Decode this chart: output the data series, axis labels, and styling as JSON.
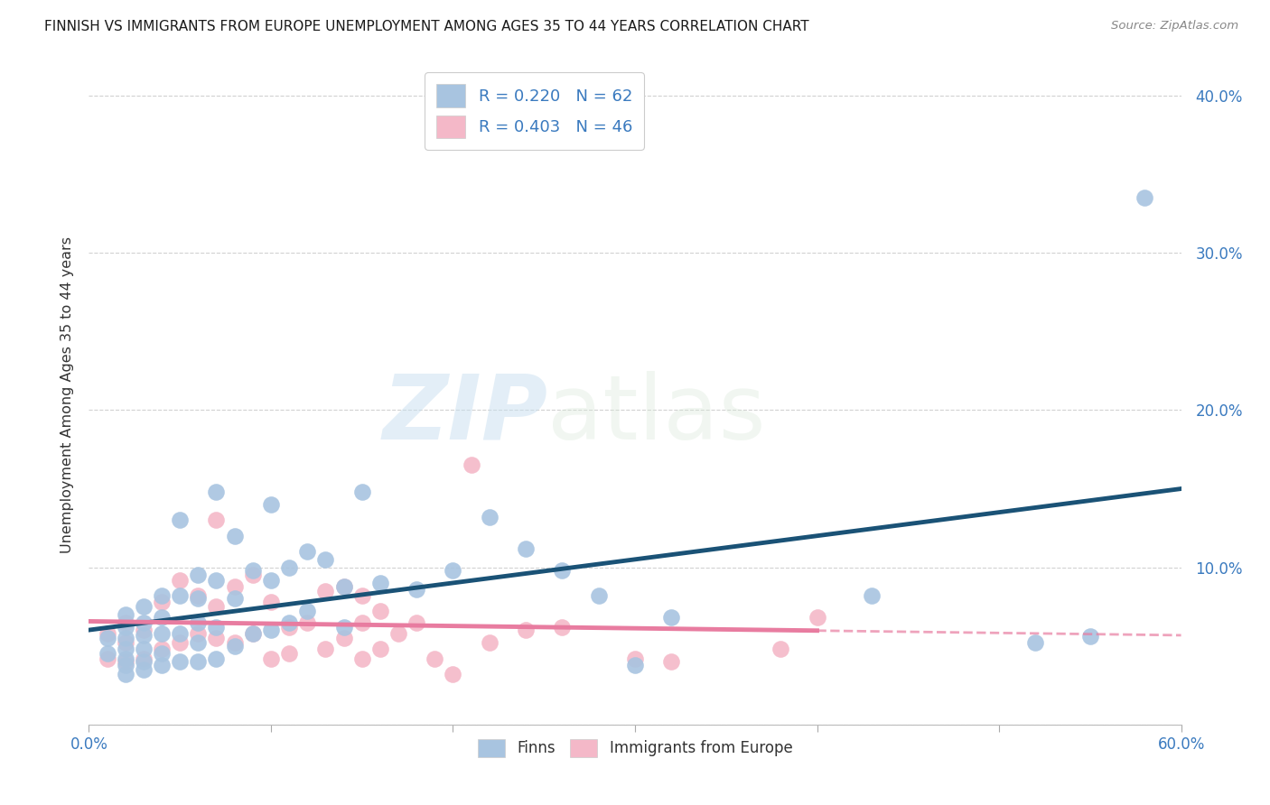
{
  "title": "FINNISH VS IMMIGRANTS FROM EUROPE UNEMPLOYMENT AMONG AGES 35 TO 44 YEARS CORRELATION CHART",
  "source": "Source: ZipAtlas.com",
  "ylabel_label": "Unemployment Among Ages 35 to 44 years",
  "xlim": [
    0.0,
    0.6
  ],
  "ylim": [
    0.0,
    0.42
  ],
  "xticks": [
    0.0,
    0.1,
    0.2,
    0.3,
    0.4,
    0.5,
    0.6
  ],
  "yticks": [
    0.0,
    0.1,
    0.2,
    0.3,
    0.4
  ],
  "ytick_labels": [
    "",
    "10.0%",
    "20.0%",
    "30.0%",
    "40.0%"
  ],
  "xtick_labels": [
    "0.0%",
    "",
    "",
    "",
    "",
    "",
    "60.0%"
  ],
  "legend1_R": "0.220",
  "legend1_N": "62",
  "legend2_R": "0.403",
  "legend2_N": "46",
  "finns_color": "#a8c4e0",
  "immigrants_color": "#f4b8c8",
  "finns_line_color": "#1a5276",
  "immigrants_line_color": "#e87ca0",
  "grid_color": "#cccccc",
  "watermark_zip": "ZIP",
  "watermark_atlas": "atlas",
  "finns_x": [
    0.01,
    0.01,
    0.02,
    0.02,
    0.02,
    0.02,
    0.02,
    0.02,
    0.02,
    0.03,
    0.03,
    0.03,
    0.03,
    0.03,
    0.03,
    0.04,
    0.04,
    0.04,
    0.04,
    0.04,
    0.05,
    0.05,
    0.05,
    0.05,
    0.06,
    0.06,
    0.06,
    0.06,
    0.06,
    0.07,
    0.07,
    0.07,
    0.07,
    0.08,
    0.08,
    0.08,
    0.09,
    0.09,
    0.1,
    0.1,
    0.1,
    0.11,
    0.11,
    0.12,
    0.12,
    0.13,
    0.14,
    0.14,
    0.15,
    0.16,
    0.18,
    0.2,
    0.22,
    0.24,
    0.26,
    0.28,
    0.3,
    0.32,
    0.43,
    0.52,
    0.55,
    0.58
  ],
  "finns_y": [
    0.055,
    0.045,
    0.07,
    0.062,
    0.055,
    0.048,
    0.042,
    0.038,
    0.032,
    0.075,
    0.065,
    0.057,
    0.048,
    0.04,
    0.035,
    0.082,
    0.068,
    0.058,
    0.045,
    0.038,
    0.13,
    0.082,
    0.058,
    0.04,
    0.095,
    0.08,
    0.065,
    0.052,
    0.04,
    0.148,
    0.092,
    0.062,
    0.042,
    0.12,
    0.08,
    0.05,
    0.098,
    0.058,
    0.14,
    0.092,
    0.06,
    0.1,
    0.065,
    0.11,
    0.072,
    0.105,
    0.088,
    0.062,
    0.148,
    0.09,
    0.086,
    0.098,
    0.132,
    0.112,
    0.098,
    0.082,
    0.038,
    0.068,
    0.082,
    0.052,
    0.056,
    0.335
  ],
  "immigrants_x": [
    0.01,
    0.01,
    0.02,
    0.02,
    0.02,
    0.03,
    0.03,
    0.04,
    0.04,
    0.05,
    0.05,
    0.06,
    0.06,
    0.07,
    0.07,
    0.07,
    0.08,
    0.08,
    0.09,
    0.09,
    0.1,
    0.1,
    0.11,
    0.11,
    0.12,
    0.13,
    0.13,
    0.14,
    0.14,
    0.15,
    0.15,
    0.15,
    0.16,
    0.16,
    0.17,
    0.18,
    0.19,
    0.2,
    0.21,
    0.22,
    0.24,
    0.26,
    0.3,
    0.32,
    0.38,
    0.4
  ],
  "immigrants_y": [
    0.058,
    0.042,
    0.065,
    0.052,
    0.04,
    0.06,
    0.042,
    0.078,
    0.048,
    0.092,
    0.052,
    0.082,
    0.058,
    0.13,
    0.075,
    0.055,
    0.088,
    0.052,
    0.095,
    0.058,
    0.078,
    0.042,
    0.062,
    0.045,
    0.065,
    0.085,
    0.048,
    0.088,
    0.055,
    0.082,
    0.065,
    0.042,
    0.072,
    0.048,
    0.058,
    0.065,
    0.042,
    0.032,
    0.165,
    0.052,
    0.06,
    0.062,
    0.042,
    0.04,
    0.048,
    0.068
  ]
}
